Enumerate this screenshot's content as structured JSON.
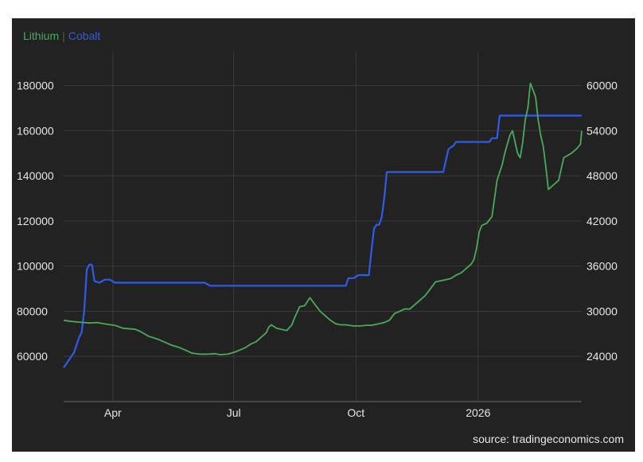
{
  "source_text": "source: tradingeconomics.com",
  "chart_data": {
    "type": "line",
    "title": "",
    "xlabel": "",
    "grid": true,
    "legend_placement": "top-left",
    "x_range": [
      0,
      390
    ],
    "x_ticks": [
      {
        "label": "Apr",
        "x": 37
      },
      {
        "label": "Jul",
        "x": 128
      },
      {
        "label": "Oct",
        "x": 220
      },
      {
        "label": "2026",
        "x": 312
      }
    ],
    "left_axis": {
      "min": 40000,
      "max": 195000,
      "ticks": [
        60000,
        80000,
        100000,
        120000,
        140000,
        160000,
        180000
      ]
    },
    "right_axis": {
      "min": 18000,
      "max": 64500,
      "ticks": [
        24000,
        30000,
        36000,
        42000,
        48000,
        54000,
        60000
      ]
    },
    "series": [
      {
        "name": "Lithium",
        "axis": "left",
        "color": "#4aaa5a",
        "points": [
          [
            0,
            76000
          ],
          [
            6,
            75500
          ],
          [
            12,
            75200
          ],
          [
            20,
            74800
          ],
          [
            26,
            75000
          ],
          [
            34,
            74200
          ],
          [
            40,
            73800
          ],
          [
            46,
            72500
          ],
          [
            56,
            72000
          ],
          [
            60,
            71000
          ],
          [
            66,
            69000
          ],
          [
            74,
            67500
          ],
          [
            80,
            66000
          ],
          [
            84,
            65000
          ],
          [
            90,
            64000
          ],
          [
            96,
            62500
          ],
          [
            100,
            61500
          ],
          [
            106,
            61000
          ],
          [
            112,
            61000
          ],
          [
            118,
            61200
          ],
          [
            122,
            60800
          ],
          [
            128,
            61000
          ],
          [
            134,
            62000
          ],
          [
            138,
            63000
          ],
          [
            142,
            64000
          ],
          [
            146,
            65500
          ],
          [
            150,
            66500
          ],
          [
            154,
            68500
          ],
          [
            158,
            70500
          ],
          [
            160,
            73000
          ],
          [
            162,
            74000
          ],
          [
            166,
            72500
          ],
          [
            170,
            72000
          ],
          [
            174,
            71500
          ],
          [
            178,
            74000
          ],
          [
            180,
            77000
          ],
          [
            184,
            82000
          ],
          [
            188,
            82500
          ],
          [
            192,
            86000
          ],
          [
            196,
            83000
          ],
          [
            200,
            80000
          ],
          [
            204,
            78000
          ],
          [
            208,
            76000
          ],
          [
            212,
            74500
          ],
          [
            216,
            74000
          ],
          [
            220,
            74000
          ],
          [
            226,
            73500
          ],
          [
            232,
            73500
          ],
          [
            236,
            73800
          ],
          [
            240,
            73800
          ],
          [
            246,
            74500
          ],
          [
            250,
            75000
          ],
          [
            254,
            76000
          ],
          [
            258,
            79000
          ],
          [
            262,
            80000
          ],
          [
            266,
            81000
          ],
          [
            270,
            81000
          ],
          [
            274,
            83000
          ],
          [
            278,
            85000
          ],
          [
            282,
            87000
          ],
          [
            286,
            90000
          ],
          [
            290,
            93000
          ],
          [
            294,
            93500
          ],
          [
            298,
            94000
          ],
          [
            302,
            94500
          ],
          [
            306,
            96000
          ],
          [
            310,
            97000
          ],
          [
            314,
            99000
          ],
          [
            318,
            101000
          ],
          [
            320,
            103000
          ],
          [
            322,
            108000
          ],
          [
            324,
            115000
          ],
          [
            326,
            118000
          ],
          [
            330,
            119000
          ],
          [
            334,
            122000
          ],
          [
            336,
            130000
          ],
          [
            338,
            138000
          ],
          [
            342,
            145000
          ],
          [
            344,
            150000
          ],
          [
            346,
            154000
          ],
          [
            348,
            158000
          ],
          [
            350,
            160000
          ],
          [
            352,
            155000
          ],
          [
            354,
            150000
          ],
          [
            356,
            148000
          ],
          [
            358,
            155000
          ],
          [
            360,
            165000
          ],
          [
            362,
            170000
          ],
          [
            364,
            181000
          ],
          [
            366,
            178000
          ],
          [
            368,
            175000
          ],
          [
            370,
            165000
          ],
          [
            372,
            158000
          ],
          [
            374,
            153000
          ],
          [
            376,
            144000
          ],
          [
            378,
            134000
          ],
          [
            382,
            136000
          ],
          [
            386,
            138000
          ],
          [
            390,
            148000
          ],
          [
            396,
            150000
          ],
          [
            400,
            152000
          ],
          [
            403,
            154000
          ],
          [
            404,
            160000
          ]
        ]
      },
      {
        "name": "Cobalt",
        "axis": "right",
        "color": "#2f5bea",
        "points": [
          [
            0,
            22500
          ],
          [
            4,
            23500
          ],
          [
            8,
            24500
          ],
          [
            12,
            26500
          ],
          [
            14,
            27200
          ],
          [
            16,
            30000
          ],
          [
            18,
            35500
          ],
          [
            20,
            36200
          ],
          [
            22,
            36200
          ],
          [
            24,
            34000
          ],
          [
            28,
            33800
          ],
          [
            32,
            34200
          ],
          [
            36,
            34200
          ],
          [
            40,
            33800
          ],
          [
            60,
            33800
          ],
          [
            80,
            33800
          ],
          [
            100,
            33800
          ],
          [
            110,
            33800
          ],
          [
            114,
            33400
          ],
          [
            118,
            33400
          ],
          [
            150,
            33400
          ],
          [
            200,
            33400
          ],
          [
            220,
            33400
          ],
          [
            222,
            34400
          ],
          [
            226,
            34400
          ],
          [
            230,
            34800
          ],
          [
            236,
            34800
          ],
          [
            238,
            34800
          ],
          [
            240,
            38000
          ],
          [
            242,
            41000
          ],
          [
            244,
            41500
          ],
          [
            246,
            41500
          ],
          [
            248,
            42500
          ],
          [
            250,
            45000
          ],
          [
            252,
            48500
          ],
          [
            256,
            48500
          ],
          [
            270,
            48500
          ],
          [
            290,
            48500
          ],
          [
            296,
            48500
          ],
          [
            298,
            50000
          ],
          [
            300,
            51500
          ],
          [
            302,
            51800
          ],
          [
            304,
            52000
          ],
          [
            306,
            52500
          ],
          [
            310,
            52500
          ],
          [
            320,
            52500
          ],
          [
            332,
            52500
          ],
          [
            334,
            53000
          ],
          [
            338,
            53000
          ],
          [
            340,
            56000
          ],
          [
            350,
            56000
          ],
          [
            370,
            56000
          ],
          [
            390,
            56000
          ],
          [
            404,
            56000
          ]
        ]
      }
    ]
  }
}
